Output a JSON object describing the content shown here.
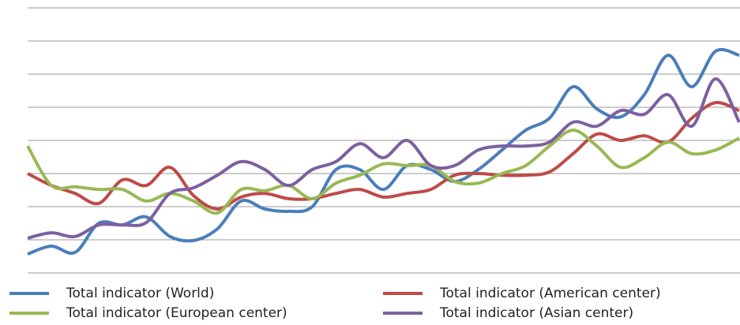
{
  "chart_data": {
    "type": "line",
    "x": [
      0,
      1,
      2,
      3,
      4,
      5,
      6,
      7,
      8,
      9,
      10,
      11,
      12,
      13,
      14,
      15,
      16,
      17,
      18,
      19,
      20,
      21,
      22,
      23,
      24,
      25,
      26,
      27,
      28,
      29,
      30
    ],
    "xlim": [
      0,
      30
    ],
    "ylim": [
      0,
      8
    ],
    "yticks": [
      0,
      1,
      2,
      3,
      4,
      5,
      6,
      7,
      8
    ],
    "grid": true,
    "legend": "bottom",
    "series": [
      {
        "name": "Total indicator (World)",
        "color": "#4a7ebb",
        "values": [
          0.57,
          0.81,
          0.62,
          1.5,
          1.45,
          1.69,
          1.1,
          0.98,
          1.33,
          2.17,
          1.93,
          1.86,
          2.0,
          3.12,
          3.12,
          2.52,
          3.24,
          3.12,
          2.76,
          3.12,
          3.71,
          4.31,
          4.67,
          5.62,
          4.95,
          4.71,
          5.38,
          6.57,
          5.62,
          6.69,
          6.57
        ]
      },
      {
        "name": "Total indicator (American center)",
        "color": "#be4b48",
        "values": [
          3.0,
          2.64,
          2.4,
          2.1,
          2.81,
          2.64,
          3.19,
          2.33,
          1.93,
          2.29,
          2.4,
          2.24,
          2.24,
          2.4,
          2.52,
          2.29,
          2.4,
          2.52,
          2.95,
          3.0,
          2.95,
          2.95,
          3.05,
          3.6,
          4.19,
          4.0,
          4.14,
          3.95,
          4.67,
          5.14,
          4.9
        ]
      },
      {
        "name": "Total indicator (European center)",
        "color": "#98b954",
        "values": [
          3.83,
          2.64,
          2.6,
          2.52,
          2.52,
          2.17,
          2.4,
          2.17,
          1.81,
          2.52,
          2.48,
          2.64,
          2.24,
          2.71,
          2.95,
          3.29,
          3.24,
          3.24,
          2.76,
          2.71,
          3.0,
          3.24,
          3.83,
          4.31,
          3.83,
          3.19,
          3.48,
          3.95,
          3.6,
          3.71,
          4.07
        ]
      },
      {
        "name": "Total indicator (Asian center)",
        "color": "#7d60a0",
        "values": [
          1.05,
          1.21,
          1.1,
          1.45,
          1.45,
          1.52,
          2.4,
          2.57,
          2.95,
          3.36,
          3.12,
          2.64,
          3.12,
          3.36,
          3.9,
          3.48,
          4.0,
          3.24,
          3.24,
          3.71,
          3.83,
          3.83,
          3.95,
          4.55,
          4.43,
          4.9,
          4.79,
          5.38,
          4.43,
          5.86,
          4.55
        ]
      }
    ]
  }
}
